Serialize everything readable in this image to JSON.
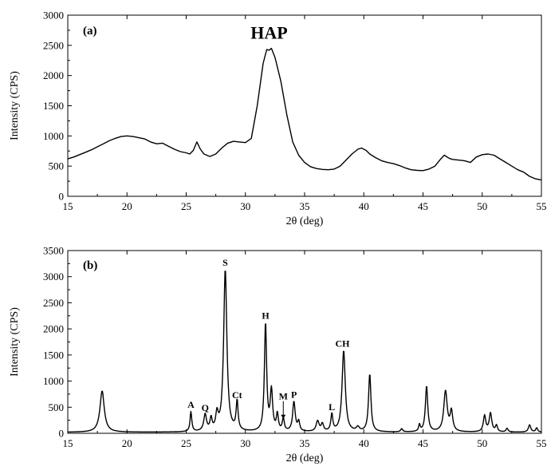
{
  "chart_data": [
    {
      "type": "line",
      "panel_label": "(a)",
      "xlabel": "2θ (deg)",
      "ylabel": "Intensity (CPS)",
      "xlim": [
        15,
        55
      ],
      "ylim": [
        0,
        3000
      ],
      "x_ticks": [
        15,
        20,
        25,
        30,
        35,
        40,
        45,
        50,
        55
      ],
      "y_ticks": [
        0,
        500,
        1000,
        1500,
        2000,
        2500,
        3000
      ],
      "annotations": [
        {
          "text": "HAP",
          "x": 32,
          "y": 2450
        }
      ],
      "series": [
        {
          "points": [
            [
              15.0,
              620
            ],
            [
              15.5,
              650
            ],
            [
              16.0,
              690
            ],
            [
              16.5,
              730
            ],
            [
              17.0,
              770
            ],
            [
              17.5,
              820
            ],
            [
              18.0,
              870
            ],
            [
              18.5,
              920
            ],
            [
              19.0,
              960
            ],
            [
              19.5,
              990
            ],
            [
              20.0,
              1000
            ],
            [
              20.5,
              990
            ],
            [
              21.0,
              970
            ],
            [
              21.5,
              950
            ],
            [
              22.0,
              900
            ],
            [
              22.5,
              870
            ],
            [
              23.0,
              880
            ],
            [
              23.5,
              830
            ],
            [
              24.0,
              780
            ],
            [
              24.5,
              740
            ],
            [
              25.0,
              720
            ],
            [
              25.3,
              700
            ],
            [
              25.6,
              760
            ],
            [
              25.9,
              900
            ],
            [
              26.2,
              780
            ],
            [
              26.5,
              700
            ],
            [
              27.0,
              660
            ],
            [
              27.5,
              700
            ],
            [
              28.0,
              800
            ],
            [
              28.5,
              880
            ],
            [
              29.0,
              910
            ],
            [
              29.5,
              900
            ],
            [
              30.0,
              890
            ],
            [
              30.5,
              960
            ],
            [
              31.0,
              1500
            ],
            [
              31.5,
              2200
            ],
            [
              31.8,
              2430
            ],
            [
              32.0,
              2420
            ],
            [
              32.2,
              2450
            ],
            [
              32.5,
              2300
            ],
            [
              33.0,
              1900
            ],
            [
              33.5,
              1350
            ],
            [
              34.0,
              900
            ],
            [
              34.5,
              680
            ],
            [
              35.0,
              560
            ],
            [
              35.5,
              490
            ],
            [
              36.0,
              460
            ],
            [
              36.5,
              445
            ],
            [
              37.0,
              440
            ],
            [
              37.5,
              450
            ],
            [
              38.0,
              500
            ],
            [
              38.5,
              600
            ],
            [
              39.0,
              700
            ],
            [
              39.5,
              780
            ],
            [
              39.8,
              800
            ],
            [
              40.2,
              760
            ],
            [
              40.5,
              700
            ],
            [
              41.0,
              640
            ],
            [
              41.5,
              590
            ],
            [
              42.0,
              560
            ],
            [
              42.5,
              540
            ],
            [
              43.0,
              510
            ],
            [
              43.5,
              470
            ],
            [
              44.0,
              440
            ],
            [
              44.5,
              430
            ],
            [
              45.0,
              425
            ],
            [
              45.5,
              450
            ],
            [
              46.0,
              500
            ],
            [
              46.5,
              620
            ],
            [
              46.8,
              680
            ],
            [
              47.2,
              630
            ],
            [
              47.5,
              610
            ],
            [
              48.0,
              600
            ],
            [
              48.5,
              590
            ],
            [
              49.0,
              560
            ],
            [
              49.5,
              650
            ],
            [
              50.0,
              690
            ],
            [
              50.5,
              700
            ],
            [
              51.0,
              680
            ],
            [
              51.5,
              620
            ],
            [
              52.0,
              560
            ],
            [
              52.5,
              500
            ],
            [
              53.0,
              440
            ],
            [
              53.5,
              400
            ],
            [
              54.0,
              330
            ],
            [
              54.5,
              290
            ],
            [
              55.0,
              270
            ]
          ]
        }
      ]
    },
    {
      "type": "line",
      "panel_label": "(b)",
      "xlabel": "2θ (deg)",
      "ylabel": "Intensity (CPS)",
      "xlim": [
        15,
        55
      ],
      "ylim": [
        0,
        3500
      ],
      "x_ticks": [
        15,
        20,
        25,
        30,
        35,
        40,
        45,
        50,
        55
      ],
      "y_ticks": [
        0,
        500,
        1000,
        1500,
        2000,
        2500,
        3000,
        3500
      ],
      "annotations": [
        {
          "text": "A",
          "x": 25.4,
          "y": 400
        },
        {
          "text": "Q",
          "x": 26.6,
          "y": 340
        },
        {
          "text": "S",
          "x": 28.3,
          "y": 3120
        },
        {
          "text": "Ct",
          "x": 29.3,
          "y": 580
        },
        {
          "text": "H",
          "x": 31.7,
          "y": 2100
        },
        {
          "text": "M",
          "x": 33.2,
          "y": 310
        },
        {
          "text": "P",
          "x": 34.1,
          "y": 590
        },
        {
          "text": "L",
          "x": 37.3,
          "y": 350
        },
        {
          "text": "CH",
          "x": 38.2,
          "y": 1570
        }
      ],
      "series": [
        {
          "baseline": 20,
          "peaks": [
            {
              "center": 17.9,
              "height": 790,
              "width": 0.22
            },
            {
              "center": 25.4,
              "height": 380,
              "width": 0.09
            },
            {
              "center": 26.6,
              "height": 320,
              "width": 0.14
            },
            {
              "center": 27.1,
              "height": 230,
              "width": 0.1
            },
            {
              "center": 27.6,
              "height": 300,
              "width": 0.12
            },
            {
              "center": 28.3,
              "height": 3110,
              "width": 0.16
            },
            {
              "center": 29.3,
              "height": 560,
              "width": 0.1
            },
            {
              "center": 31.7,
              "height": 2080,
              "width": 0.11
            },
            {
              "center": 32.2,
              "height": 770,
              "width": 0.12
            },
            {
              "center": 32.7,
              "height": 320,
              "width": 0.1
            },
            {
              "center": 33.2,
              "height": 240,
              "width": 0.1
            },
            {
              "center": 34.1,
              "height": 570,
              "width": 0.13
            },
            {
              "center": 34.5,
              "height": 180,
              "width": 0.1
            },
            {
              "center": 36.1,
              "height": 200,
              "width": 0.15
            },
            {
              "center": 36.5,
              "height": 140,
              "width": 0.12
            },
            {
              "center": 37.3,
              "height": 330,
              "width": 0.1
            },
            {
              "center": 38.3,
              "height": 1560,
              "width": 0.16
            },
            {
              "center": 39.5,
              "height": 80,
              "width": 0.15
            },
            {
              "center": 40.5,
              "height": 1110,
              "width": 0.12
            },
            {
              "center": 43.2,
              "height": 60,
              "width": 0.1
            },
            {
              "center": 44.7,
              "height": 130,
              "width": 0.08
            },
            {
              "center": 45.3,
              "height": 880,
              "width": 0.12
            },
            {
              "center": 46.9,
              "height": 780,
              "width": 0.17
            },
            {
              "center": 47.4,
              "height": 380,
              "width": 0.13
            },
            {
              "center": 50.2,
              "height": 310,
              "width": 0.12
            },
            {
              "center": 50.7,
              "height": 360,
              "width": 0.13
            },
            {
              "center": 51.2,
              "height": 120,
              "width": 0.1
            },
            {
              "center": 52.1,
              "height": 70,
              "width": 0.1
            },
            {
              "center": 54.0,
              "height": 140,
              "width": 0.12
            },
            {
              "center": 54.6,
              "height": 80,
              "width": 0.1
            }
          ]
        }
      ]
    }
  ]
}
